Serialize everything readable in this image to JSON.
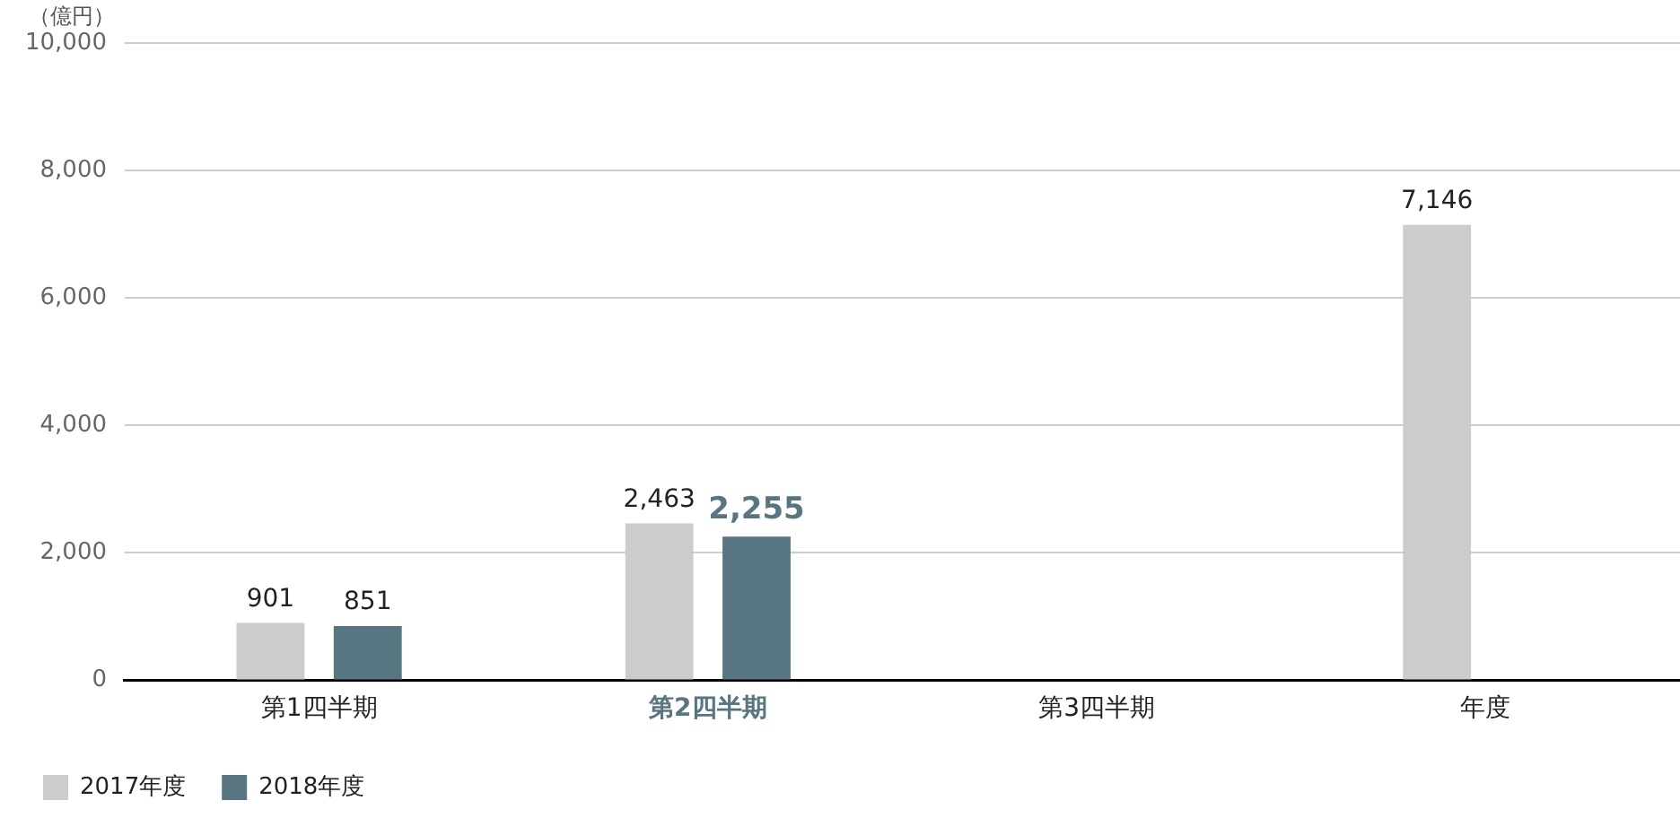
{
  "chart_data": {
    "type": "bar",
    "ylabel": "（億円）",
    "categories": [
      "第1四半期",
      "第2四半期",
      "第3四半期",
      "年度"
    ],
    "series": [
      {
        "name": "2017年度",
        "color": "#cccccc",
        "values": [
          901,
          2463,
          null,
          7146
        ],
        "value_labels": [
          "901",
          "2,463",
          null,
          "7,146"
        ]
      },
      {
        "name": "2018年度",
        "color": "#587582",
        "values": [
          851,
          2255,
          null,
          null
        ],
        "value_labels": [
          "851",
          "2,255",
          null,
          null
        ]
      }
    ],
    "ylim": [
      0,
      10000
    ],
    "yticks": [
      {
        "value": 0,
        "label": "0"
      },
      {
        "value": 2000,
        "label": "2,000"
      },
      {
        "value": 4000,
        "label": "4,000"
      },
      {
        "value": 6000,
        "label": "6,000"
      },
      {
        "value": 8000,
        "label": "8,000"
      },
      {
        "value": 10000,
        "label": "10,000"
      }
    ],
    "grid": "y",
    "legend": "bottom left"
  }
}
